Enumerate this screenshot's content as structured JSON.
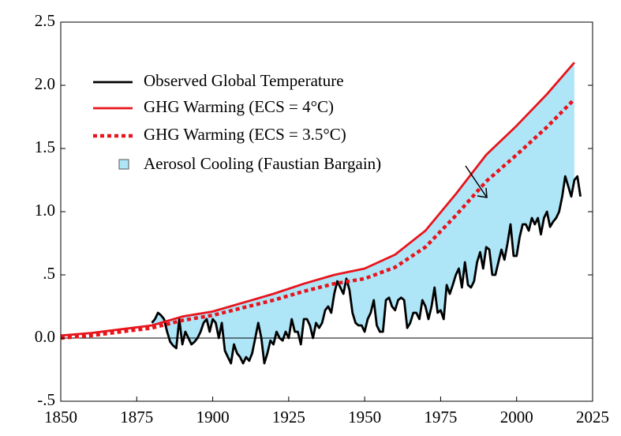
{
  "chart_data": {
    "type": "line",
    "xlim": [
      1850,
      2025
    ],
    "xticks": [
      1850,
      1875,
      1900,
      1925,
      1950,
      1975,
      2000,
      2025
    ],
    "ylim": [
      -0.5,
      2.5
    ],
    "yticks": [
      {
        "value": -0.5,
        "label": "-.5"
      },
      {
        "value": 0,
        "label": "0.0"
      },
      {
        "value": 0.5,
        "label": ".5"
      },
      {
        "value": 1,
        "label": "1.0"
      },
      1.5,
      {
        "value": 2,
        "label": "2.0"
      },
      2.5
    ],
    "series": [
      {
        "name": "Observed Global Temperature",
        "color": "#000000",
        "style": "solid",
        "x": [
          1880,
          1881,
          1882,
          1883,
          1884,
          1885,
          1886,
          1887,
          1888,
          1889,
          1890,
          1891,
          1892,
          1893,
          1894,
          1895,
          1896,
          1897,
          1898,
          1899,
          1900,
          1901,
          1902,
          1903,
          1904,
          1905,
          1906,
          1907,
          1908,
          1909,
          1910,
          1911,
          1912,
          1913,
          1914,
          1915,
          1916,
          1917,
          1918,
          1919,
          1920,
          1921,
          1922,
          1923,
          1924,
          1925,
          1926,
          1927,
          1928,
          1929,
          1930,
          1931,
          1932,
          1933,
          1934,
          1935,
          1936,
          1937,
          1938,
          1939,
          1940,
          1941,
          1942,
          1943,
          1944,
          1945,
          1946,
          1947,
          1948,
          1949,
          1950,
          1951,
          1952,
          1953,
          1954,
          1955,
          1956,
          1957,
          1958,
          1959,
          1960,
          1961,
          1962,
          1963,
          1964,
          1965,
          1966,
          1967,
          1968,
          1969,
          1970,
          1971,
          1972,
          1973,
          1974,
          1975,
          1976,
          1977,
          1978,
          1979,
          1980,
          1981,
          1982,
          1983,
          1984,
          1985,
          1986,
          1987,
          1988,
          1989,
          1990,
          1991,
          1992,
          1993,
          1994,
          1995,
          1996,
          1997,
          1998,
          1999,
          2000,
          2001,
          2002,
          2003,
          2004,
          2005,
          2006,
          2007,
          2008,
          2009,
          2010,
          2011,
          2012,
          2013,
          2014,
          2015,
          2016,
          2017,
          2018,
          2019,
          2020,
          2021
        ],
        "values": [
          0.12,
          0.15,
          0.2,
          0.18,
          0.15,
          0.05,
          -0.03,
          -0.06,
          -0.08,
          0.15,
          -0.05,
          0.05,
          0.0,
          -0.05,
          -0.03,
          0.0,
          0.05,
          0.12,
          0.15,
          0.05,
          0.15,
          0.12,
          0.0,
          0.12,
          -0.1,
          -0.15,
          -0.2,
          -0.05,
          -0.12,
          -0.15,
          -0.2,
          -0.15,
          -0.18,
          -0.12,
          0.0,
          0.12,
          0.0,
          -0.2,
          -0.12,
          -0.02,
          -0.05,
          0.05,
          0.0,
          -0.02,
          0.05,
          0.0,
          0.15,
          0.05,
          0.05,
          -0.05,
          0.15,
          0.15,
          0.1,
          0.0,
          0.12,
          0.08,
          0.12,
          0.22,
          0.25,
          0.2,
          0.35,
          0.45,
          0.4,
          0.35,
          0.47,
          0.38,
          0.2,
          0.12,
          0.1,
          0.1,
          0.05,
          0.15,
          0.2,
          0.3,
          0.1,
          0.05,
          0.05,
          0.3,
          0.32,
          0.25,
          0.22,
          0.3,
          0.32,
          0.3,
          0.08,
          0.12,
          0.2,
          0.2,
          0.15,
          0.3,
          0.25,
          0.15,
          0.25,
          0.4,
          0.2,
          0.22,
          0.15,
          0.42,
          0.35,
          0.42,
          0.5,
          0.55,
          0.4,
          0.6,
          0.42,
          0.4,
          0.45,
          0.6,
          0.68,
          0.55,
          0.72,
          0.7,
          0.5,
          0.5,
          0.6,
          0.7,
          0.62,
          0.75,
          0.9,
          0.65,
          0.65,
          0.8,
          0.9,
          0.9,
          0.85,
          0.95,
          0.9,
          0.95,
          0.82,
          0.95,
          1.0,
          0.88,
          0.92,
          0.95,
          1.0,
          1.12,
          1.28,
          1.2,
          1.12,
          1.25,
          1.28,
          1.12
        ]
      },
      {
        "name": "GHG Warming (ECS = 4°C)",
        "color": "#e8141c",
        "style": "solid",
        "x": [
          1850,
          1860,
          1870,
          1880,
          1890,
          1900,
          1910,
          1920,
          1930,
          1940,
          1950,
          1960,
          1970,
          1980,
          1990,
          2000,
          2010,
          2019
        ],
        "values": [
          0.02,
          0.04,
          0.07,
          0.1,
          0.17,
          0.21,
          0.28,
          0.35,
          0.43,
          0.5,
          0.55,
          0.66,
          0.85,
          1.14,
          1.45,
          1.68,
          1.93,
          2.18
        ]
      },
      {
        "name": "GHG Warming (ECS = 3.5°C)",
        "color": "#e8141c",
        "style": "dotted",
        "x": [
          1850,
          1860,
          1870,
          1880,
          1890,
          1900,
          1910,
          1920,
          1930,
          1940,
          1950,
          1960,
          1970,
          1980,
          1990,
          2000,
          2010,
          2019
        ],
        "values": [
          0.0,
          0.02,
          0.05,
          0.08,
          0.14,
          0.18,
          0.24,
          0.3,
          0.37,
          0.43,
          0.47,
          0.56,
          0.72,
          0.97,
          1.24,
          1.45,
          1.67,
          1.89
        ]
      }
    ],
    "fill": {
      "name": "Aerosol Cooling (Faustian Bargain)",
      "color": "#aee6f8",
      "upper": 1,
      "lower": 0
    }
  }
}
